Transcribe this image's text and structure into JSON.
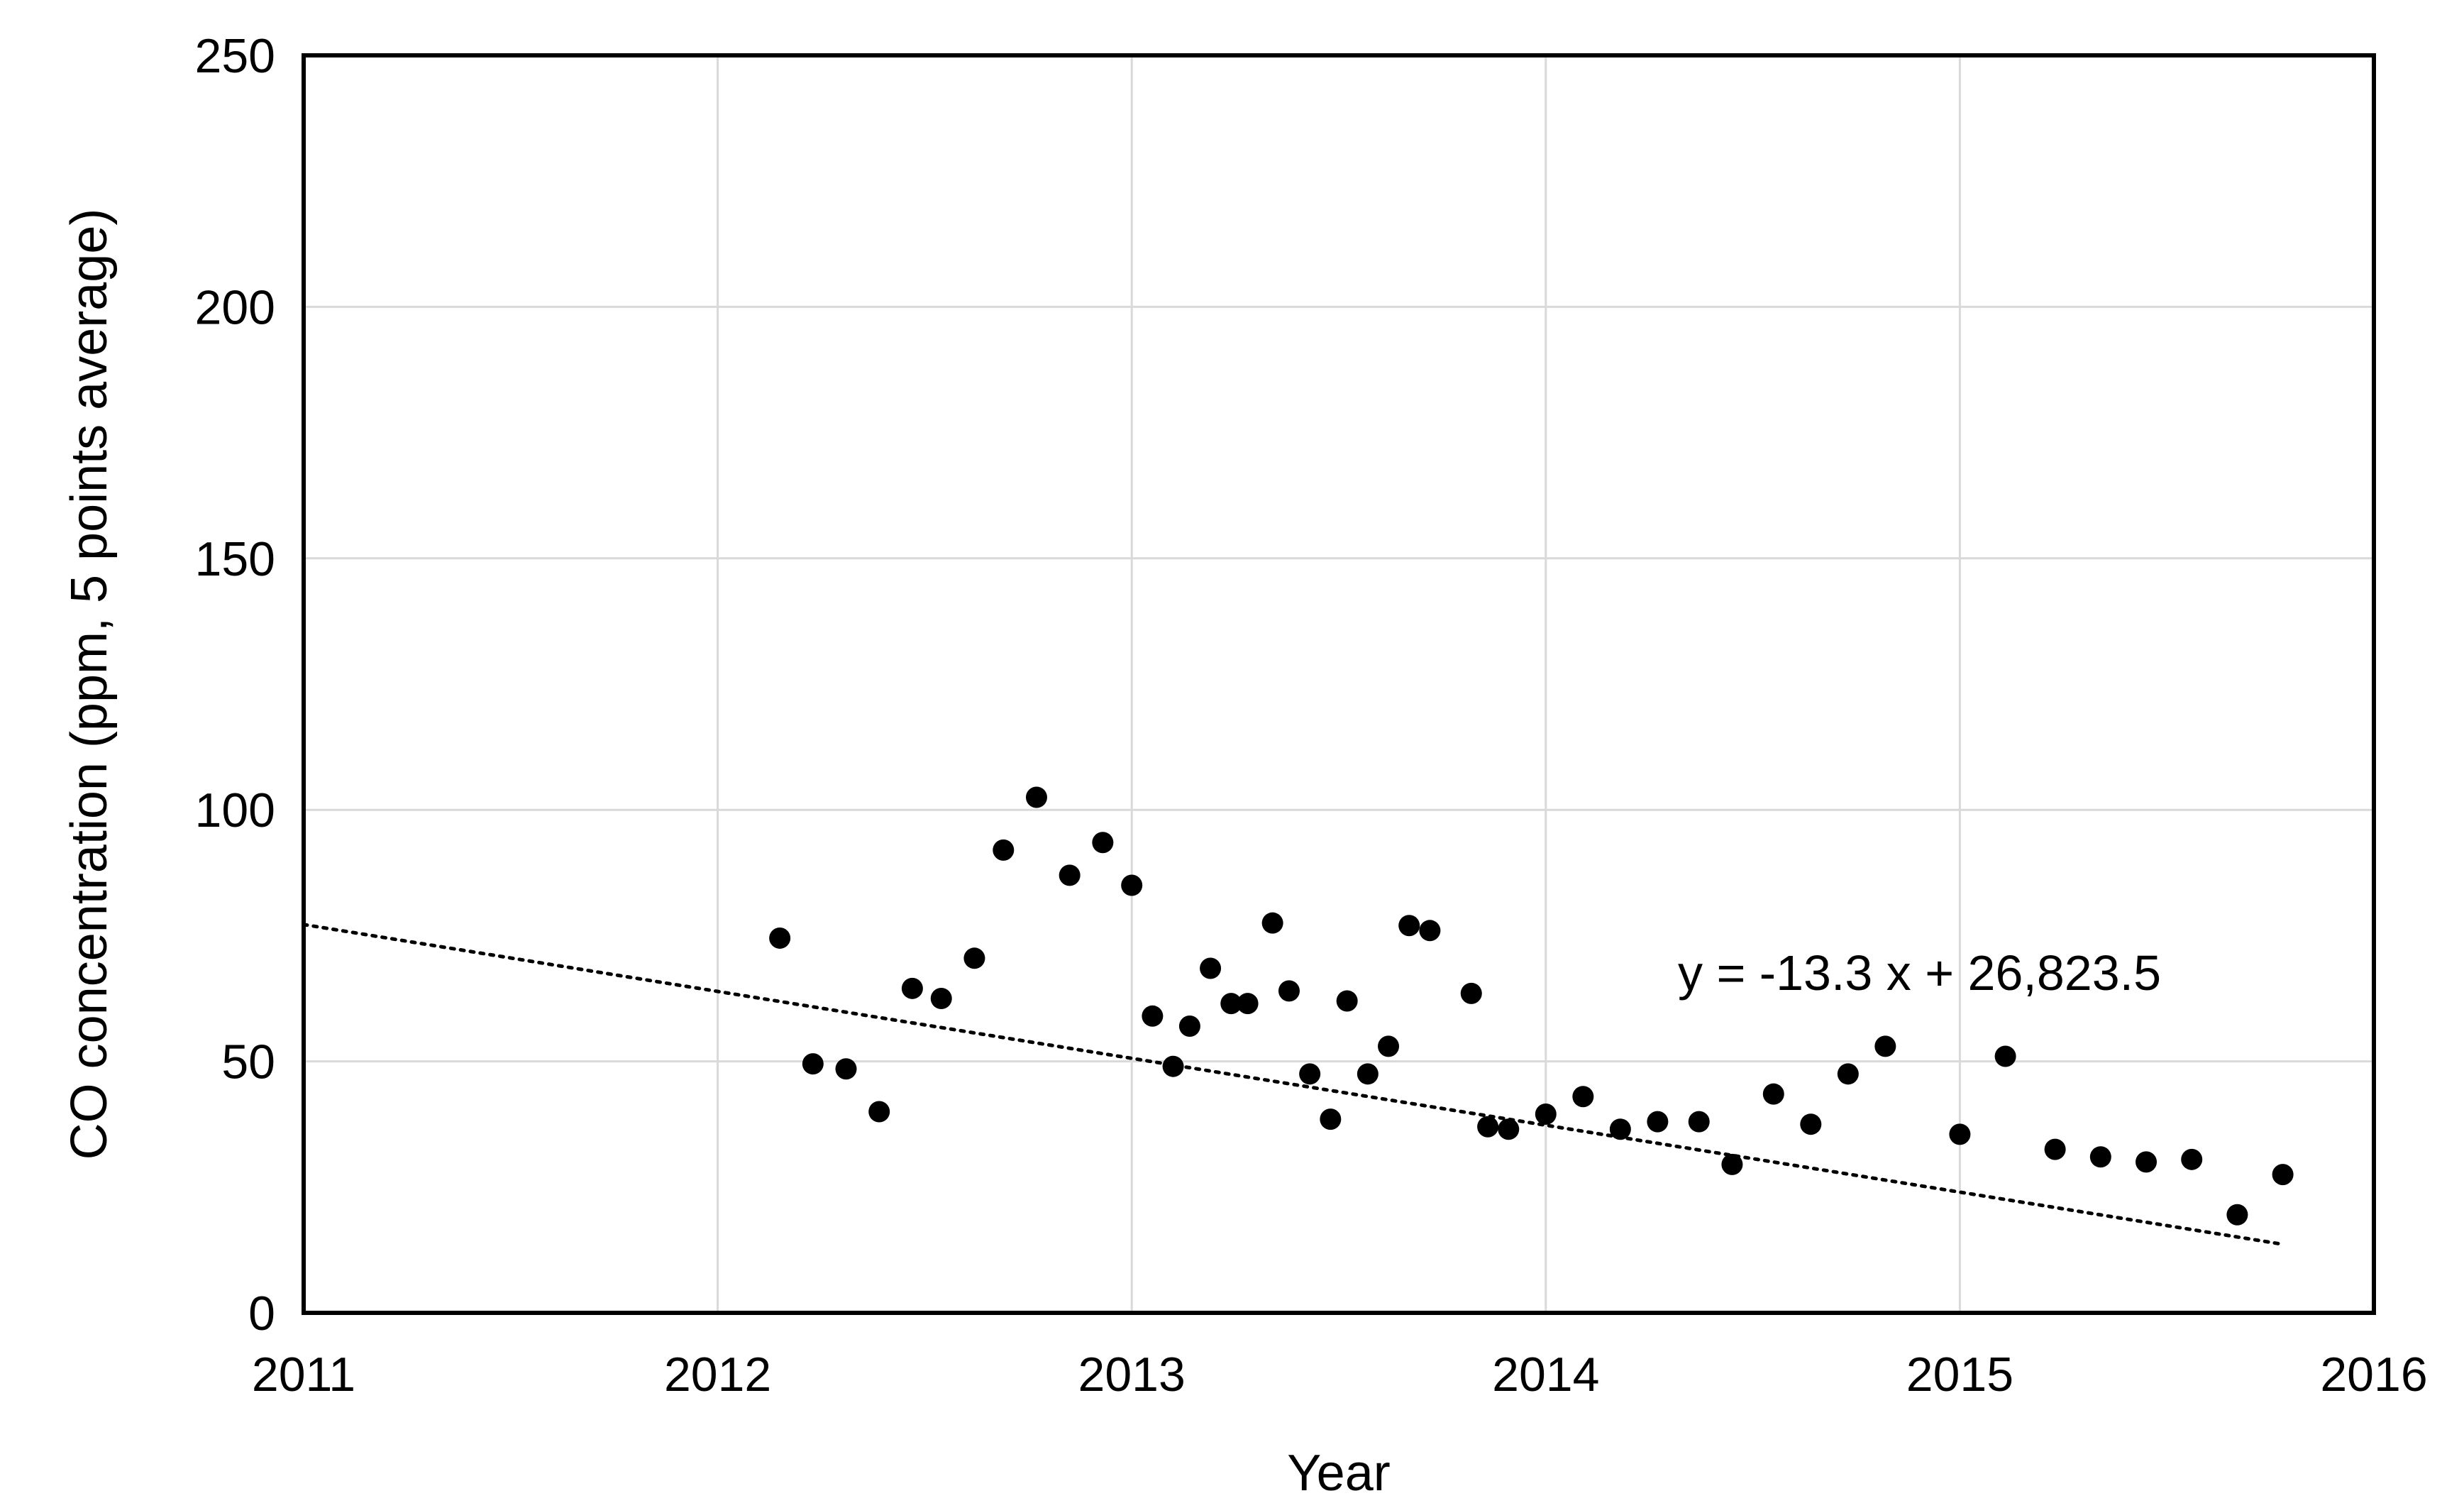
{
  "chart_data": {
    "type": "scatter",
    "title": "",
    "xlabel": "Year",
    "ylabel": "CO concentration (ppm, 5 points average)",
    "xlim": [
      2011,
      2016
    ],
    "ylim": [
      0,
      250
    ],
    "xticks": [
      2011,
      2012,
      2013,
      2014,
      2015,
      2016
    ],
    "yticks": [
      0,
      50,
      100,
      150,
      200,
      250
    ],
    "grid": true,
    "legend": "none",
    "point_color": "#000000",
    "series": [
      {
        "points": [
          [
            2012.15,
            74.5
          ],
          [
            2012.23,
            49.5
          ],
          [
            2012.31,
            48.5
          ],
          [
            2012.39,
            40.0
          ],
          [
            2012.47,
            64.5
          ],
          [
            2012.54,
            62.5
          ],
          [
            2012.62,
            70.5
          ],
          [
            2012.69,
            92.0
          ],
          [
            2012.77,
            102.5
          ],
          [
            2012.85,
            87.0
          ],
          [
            2012.93,
            93.5
          ],
          [
            2013.0,
            85.0
          ],
          [
            2013.05,
            59.0
          ],
          [
            2013.1,
            49.0
          ],
          [
            2013.14,
            57.0
          ],
          [
            2013.19,
            68.5
          ],
          [
            2013.24,
            61.5
          ],
          [
            2013.28,
            61.5
          ],
          [
            2013.34,
            77.5
          ],
          [
            2013.38,
            64.0
          ],
          [
            2013.43,
            47.5
          ],
          [
            2013.48,
            38.5
          ],
          [
            2013.52,
            62.0
          ],
          [
            2013.57,
            47.5
          ],
          [
            2013.62,
            53.0
          ],
          [
            2013.67,
            77.0
          ],
          [
            2013.72,
            76.0
          ],
          [
            2013.82,
            63.5
          ],
          [
            2013.86,
            37.0
          ],
          [
            2013.91,
            36.5
          ],
          [
            2014.0,
            39.5
          ],
          [
            2014.09,
            43.0
          ],
          [
            2014.18,
            36.5
          ],
          [
            2014.27,
            38.0
          ],
          [
            2014.37,
            38.0
          ],
          [
            2014.45,
            29.5
          ],
          [
            2014.55,
            43.5
          ],
          [
            2014.64,
            37.5
          ],
          [
            2014.73,
            47.5
          ],
          [
            2014.82,
            53.0
          ],
          [
            2015.0,
            35.5
          ],
          [
            2015.11,
            51.0
          ],
          [
            2015.23,
            32.5
          ],
          [
            2015.34,
            31.0
          ],
          [
            2015.45,
            30.0
          ],
          [
            2015.56,
            30.5
          ],
          [
            2015.67,
            19.5
          ],
          [
            2015.78,
            27.5
          ]
        ]
      }
    ],
    "trendline": {
      "style": "dotted",
      "slope": -13.3,
      "intercept": 26823.5,
      "x_range": [
        2011,
        2015.78
      ],
      "equation_label": "y = -13.3 x + 26,823.5"
    }
  }
}
